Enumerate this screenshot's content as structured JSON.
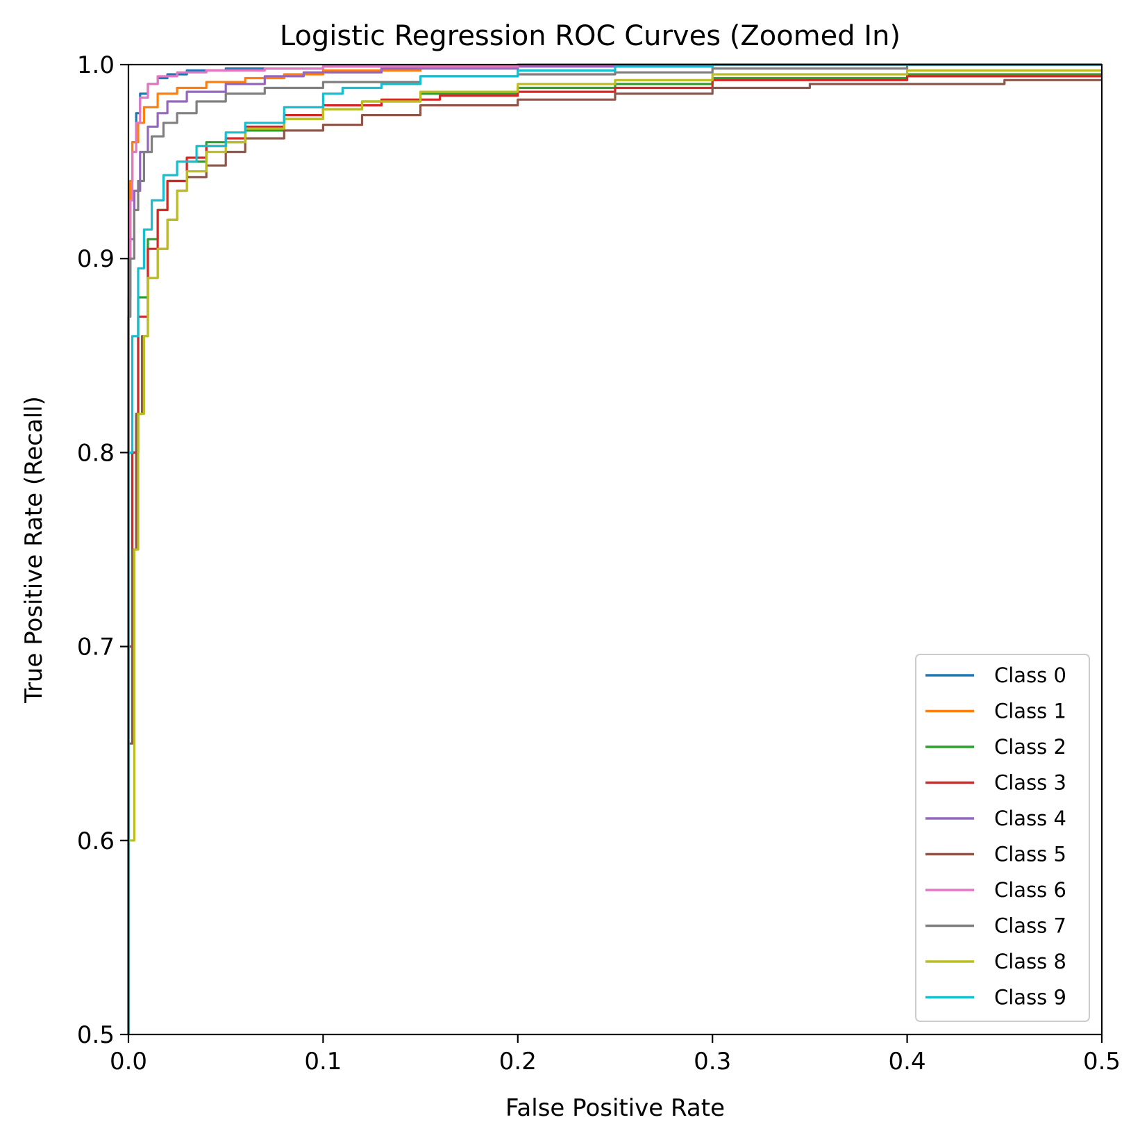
{
  "chart_data": {
    "type": "line",
    "title": "Logistic Regression ROC Curves (Zoomed In)",
    "xlabel": "False Positive Rate",
    "ylabel": "True Positive Rate (Recall)",
    "xlim": [
      0.0,
      0.5
    ],
    "ylim": [
      0.5,
      1.0
    ],
    "xticks": [
      "0.0",
      "0.1",
      "0.2",
      "0.3",
      "0.4",
      "0.5"
    ],
    "yticks": [
      "0.5",
      "0.6",
      "0.7",
      "0.8",
      "0.9",
      "1.0"
    ],
    "grid": false,
    "legend_position": "lower-right",
    "series": [
      {
        "name": "Class 0",
        "color": "#1f77b4",
        "points": [
          [
            0,
            0.5
          ],
          [
            0,
            0.8
          ],
          [
            0.001,
            0.9
          ],
          [
            0.002,
            0.94
          ],
          [
            0.004,
            0.96
          ],
          [
            0.006,
            0.975
          ],
          [
            0.01,
            0.985
          ],
          [
            0.015,
            0.99
          ],
          [
            0.02,
            0.993
          ],
          [
            0.03,
            0.995
          ],
          [
            0.05,
            0.997
          ],
          [
            0.1,
            0.998
          ],
          [
            0.2,
            0.999
          ],
          [
            0.3,
            1.0
          ],
          [
            0.5,
            1.0
          ]
        ]
      },
      {
        "name": "Class 1",
        "color": "#ff7f0e",
        "points": [
          [
            0,
            0.5
          ],
          [
            0,
            0.8
          ],
          [
            0.001,
            0.9
          ],
          [
            0.002,
            0.94
          ],
          [
            0.005,
            0.96
          ],
          [
            0.008,
            0.97
          ],
          [
            0.015,
            0.978
          ],
          [
            0.025,
            0.985
          ],
          [
            0.04,
            0.988
          ],
          [
            0.06,
            0.991
          ],
          [
            0.08,
            0.993
          ],
          [
            0.1,
            0.995
          ],
          [
            0.15,
            0.997
          ],
          [
            0.2,
            0.999
          ],
          [
            0.3,
            1.0
          ],
          [
            0.5,
            1.0
          ]
        ]
      },
      {
        "name": "Class 2",
        "color": "#2ca02c",
        "points": [
          [
            0,
            0.5
          ],
          [
            0.002,
            0.7
          ],
          [
            0.005,
            0.8
          ],
          [
            0.01,
            0.88
          ],
          [
            0.015,
            0.91
          ],
          [
            0.02,
            0.925
          ],
          [
            0.03,
            0.94
          ],
          [
            0.04,
            0.95
          ],
          [
            0.06,
            0.96
          ],
          [
            0.08,
            0.966
          ],
          [
            0.1,
            0.972
          ],
          [
            0.12,
            0.977
          ],
          [
            0.15,
            0.981
          ],
          [
            0.2,
            0.985
          ],
          [
            0.25,
            0.988
          ],
          [
            0.3,
            0.99
          ],
          [
            0.4,
            0.993
          ],
          [
            0.5,
            0.995
          ]
        ]
      },
      {
        "name": "Class 3",
        "color": "#d62728",
        "points": [
          [
            0,
            0.5
          ],
          [
            0.002,
            0.7
          ],
          [
            0.005,
            0.8
          ],
          [
            0.01,
            0.87
          ],
          [
            0.015,
            0.905
          ],
          [
            0.02,
            0.925
          ],
          [
            0.03,
            0.94
          ],
          [
            0.04,
            0.952
          ],
          [
            0.05,
            0.958
          ],
          [
            0.06,
            0.962
          ],
          [
            0.08,
            0.968
          ],
          [
            0.1,
            0.974
          ],
          [
            0.13,
            0.979
          ],
          [
            0.16,
            0.982
          ],
          [
            0.2,
            0.984
          ],
          [
            0.25,
            0.986
          ],
          [
            0.3,
            0.988
          ],
          [
            0.4,
            0.992
          ],
          [
            0.5,
            0.994
          ]
        ]
      },
      {
        "name": "Class 4",
        "color": "#9467bd",
        "points": [
          [
            0,
            0.5
          ],
          [
            0,
            0.8
          ],
          [
            0.001,
            0.88
          ],
          [
            0.003,
            0.91
          ],
          [
            0.006,
            0.935
          ],
          [
            0.01,
            0.955
          ],
          [
            0.015,
            0.968
          ],
          [
            0.02,
            0.975
          ],
          [
            0.03,
            0.981
          ],
          [
            0.05,
            0.986
          ],
          [
            0.07,
            0.99
          ],
          [
            0.09,
            0.994
          ],
          [
            0.13,
            0.996
          ],
          [
            0.2,
            0.998
          ],
          [
            0.3,
            0.999
          ],
          [
            0.5,
            1.0
          ]
        ]
      },
      {
        "name": "Class 5",
        "color": "#8c564b",
        "points": [
          [
            0,
            0.5
          ],
          [
            0.002,
            0.65
          ],
          [
            0.004,
            0.75
          ],
          [
            0.007,
            0.82
          ],
          [
            0.01,
            0.86
          ],
          [
            0.015,
            0.89
          ],
          [
            0.02,
            0.905
          ],
          [
            0.025,
            0.92
          ],
          [
            0.03,
            0.935
          ],
          [
            0.04,
            0.942
          ],
          [
            0.05,
            0.948
          ],
          [
            0.06,
            0.955
          ],
          [
            0.08,
            0.962
          ],
          [
            0.1,
            0.966
          ],
          [
            0.12,
            0.969
          ],
          [
            0.15,
            0.974
          ],
          [
            0.2,
            0.979
          ],
          [
            0.25,
            0.982
          ],
          [
            0.3,
            0.985
          ],
          [
            0.35,
            0.988
          ],
          [
            0.4,
            0.99
          ],
          [
            0.45,
            0.99
          ],
          [
            0.5,
            0.992
          ]
        ]
      },
      {
        "name": "Class 6",
        "color": "#e377c2",
        "points": [
          [
            0,
            0.5
          ],
          [
            0,
            0.8
          ],
          [
            0.001,
            0.9
          ],
          [
            0.002,
            0.93
          ],
          [
            0.004,
            0.955
          ],
          [
            0.006,
            0.97
          ],
          [
            0.01,
            0.983
          ],
          [
            0.015,
            0.99
          ],
          [
            0.025,
            0.994
          ],
          [
            0.04,
            0.996
          ],
          [
            0.07,
            0.997
          ],
          [
            0.1,
            0.998
          ],
          [
            0.2,
            0.999
          ],
          [
            0.3,
            1.0
          ],
          [
            0.5,
            1.0
          ]
        ]
      },
      {
        "name": "Class 7",
        "color": "#7f7f7f",
        "points": [
          [
            0,
            0.5
          ],
          [
            0,
            0.8
          ],
          [
            0.001,
            0.87
          ],
          [
            0.003,
            0.9
          ],
          [
            0.005,
            0.925
          ],
          [
            0.008,
            0.94
          ],
          [
            0.012,
            0.955
          ],
          [
            0.018,
            0.963
          ],
          [
            0.025,
            0.97
          ],
          [
            0.035,
            0.975
          ],
          [
            0.05,
            0.981
          ],
          [
            0.07,
            0.985
          ],
          [
            0.1,
            0.988
          ],
          [
            0.15,
            0.991
          ],
          [
            0.2,
            0.994
          ],
          [
            0.25,
            0.995
          ],
          [
            0.3,
            0.996
          ],
          [
            0.4,
            0.998
          ],
          [
            0.5,
            1.0
          ]
        ]
      },
      {
        "name": "Class 8",
        "color": "#bcbd22",
        "points": [
          [
            0,
            0.5
          ],
          [
            0.003,
            0.6
          ],
          [
            0.005,
            0.75
          ],
          [
            0.008,
            0.82
          ],
          [
            0.01,
            0.86
          ],
          [
            0.015,
            0.89
          ],
          [
            0.02,
            0.905
          ],
          [
            0.025,
            0.92
          ],
          [
            0.03,
            0.935
          ],
          [
            0.04,
            0.945
          ],
          [
            0.05,
            0.955
          ],
          [
            0.06,
            0.96
          ],
          [
            0.08,
            0.967
          ],
          [
            0.1,
            0.972
          ],
          [
            0.12,
            0.977
          ],
          [
            0.15,
            0.981
          ],
          [
            0.2,
            0.986
          ],
          [
            0.25,
            0.99
          ],
          [
            0.3,
            0.992
          ],
          [
            0.4,
            0.995
          ],
          [
            0.5,
            0.997
          ]
        ]
      },
      {
        "name": "Class 9",
        "color": "#17becf",
        "points": [
          [
            0,
            0.5
          ],
          [
            0,
            0.7
          ],
          [
            0.002,
            0.8
          ],
          [
            0.005,
            0.86
          ],
          [
            0.008,
            0.895
          ],
          [
            0.012,
            0.915
          ],
          [
            0.018,
            0.93
          ],
          [
            0.025,
            0.943
          ],
          [
            0.035,
            0.95
          ],
          [
            0.05,
            0.958
          ],
          [
            0.06,
            0.965
          ],
          [
            0.08,
            0.97
          ],
          [
            0.1,
            0.978
          ],
          [
            0.11,
            0.985
          ],
          [
            0.13,
            0.988
          ],
          [
            0.15,
            0.99
          ],
          [
            0.2,
            0.994
          ],
          [
            0.25,
            0.997
          ],
          [
            0.3,
            0.999
          ],
          [
            0.4,
            1.0
          ],
          [
            0.5,
            1.0
          ]
        ]
      }
    ]
  }
}
